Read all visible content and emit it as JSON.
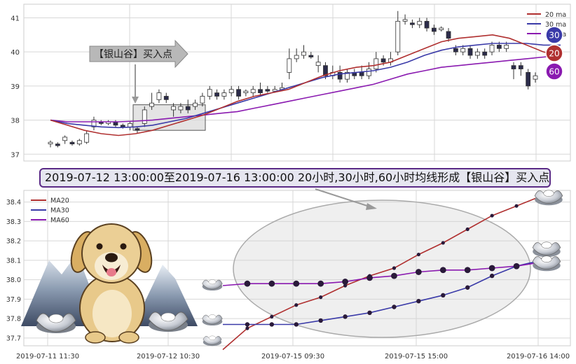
{
  "pattern_label": "【银山谷】买入点",
  "banner": "2019-07-12 13:00:00至2019-07-16 13:00:00 20小时,30小时,60小时均线形成【银山谷】买入点",
  "badges": [
    "30",
    "20",
    "60"
  ],
  "colors": {
    "ma20": "#b03030",
    "ma30": "#3a3aa8",
    "ma60": "#8a1ab0",
    "bull": "#ffffff",
    "bear": "#2b2b4a",
    "grid": "#d7d7d7"
  },
  "chart_data": [
    {
      "type": "candlestick",
      "legend": [
        "20 ma",
        "30 ma",
        "60 ma"
      ],
      "legend_position": "top-right",
      "grid": true,
      "y_ticks": [
        37,
        38,
        39,
        40,
        41
      ],
      "ylim": [
        36.8,
        41.4
      ],
      "candles": [
        [
          37.3,
          37.35,
          37.2,
          37.4
        ],
        [
          37.3,
          37.25,
          37.2,
          37.35
        ],
        [
          37.4,
          37.5,
          37.3,
          37.55
        ],
        [
          37.35,
          37.3,
          37.25,
          37.4
        ],
        [
          37.3,
          37.4,
          37.25,
          37.45
        ],
        [
          37.35,
          37.6,
          37.3,
          37.7
        ],
        [
          37.8,
          38.0,
          37.7,
          38.1
        ],
        [
          37.95,
          37.9,
          37.85,
          38.0
        ],
        [
          37.9,
          37.95,
          37.85,
          38.0
        ],
        [
          37.95,
          37.85,
          37.8,
          38.0
        ],
        [
          37.85,
          37.8,
          37.75,
          37.9
        ],
        [
          37.8,
          37.9,
          37.7,
          37.95
        ],
        [
          37.75,
          37.7,
          37.6,
          37.8
        ],
        [
          37.9,
          38.3,
          37.8,
          38.4
        ],
        [
          38.4,
          38.5,
          38.3,
          38.8
        ],
        [
          38.6,
          38.8,
          38.5,
          38.9
        ],
        [
          38.7,
          38.6,
          38.5,
          38.8
        ],
        [
          38.3,
          38.4,
          38.1,
          38.5
        ],
        [
          38.3,
          38.4,
          38.2,
          38.5
        ],
        [
          38.4,
          38.3,
          38.2,
          38.6
        ],
        [
          38.4,
          38.5,
          38.3,
          38.6
        ],
        [
          38.5,
          38.7,
          38.4,
          38.8
        ],
        [
          38.7,
          38.9,
          38.6,
          39.0
        ],
        [
          38.8,
          38.7,
          38.6,
          38.9
        ],
        [
          38.7,
          38.8,
          38.6,
          38.9
        ],
        [
          38.8,
          38.9,
          38.7,
          39.0
        ],
        [
          38.9,
          38.7,
          38.6,
          39.0
        ],
        [
          38.8,
          38.85,
          38.7,
          38.9
        ],
        [
          38.8,
          38.9,
          38.7,
          39.0
        ],
        [
          38.9,
          38.8,
          38.7,
          39.1
        ],
        [
          38.9,
          38.85,
          38.8,
          39.0
        ],
        [
          38.85,
          38.9,
          38.8,
          39.0
        ],
        [
          38.9,
          38.95,
          38.85,
          39.1
        ],
        [
          39.4,
          39.8,
          39.2,
          40.1
        ],
        [
          39.8,
          39.9,
          39.7,
          40.1
        ],
        [
          39.9,
          40.0,
          39.8,
          40.2
        ],
        [
          39.9,
          39.85,
          39.8,
          40.0
        ],
        [
          39.6,
          39.7,
          39.4,
          39.9
        ],
        [
          39.6,
          39.3,
          39.2,
          39.7
        ],
        [
          39.3,
          39.4,
          39.2,
          39.6
        ],
        [
          39.4,
          39.2,
          39.1,
          39.6
        ],
        [
          39.2,
          39.4,
          39.1,
          39.5
        ],
        [
          39.4,
          39.3,
          39.2,
          39.5
        ],
        [
          39.4,
          39.3,
          39.2,
          39.6
        ],
        [
          39.3,
          39.5,
          39.2,
          39.7
        ],
        [
          39.5,
          39.8,
          39.4,
          40.0
        ],
        [
          39.8,
          39.7,
          39.6,
          39.9
        ],
        [
          39.7,
          39.8,
          39.6,
          40.0
        ],
        [
          40.0,
          40.9,
          39.9,
          41.2
        ],
        [
          40.9,
          40.95,
          40.8,
          41.1
        ],
        [
          40.85,
          40.8,
          40.7,
          40.95
        ],
        [
          40.8,
          40.9,
          40.7,
          41.0
        ],
        [
          40.9,
          40.7,
          40.6,
          41.0
        ],
        [
          40.7,
          40.6,
          40.5,
          40.8
        ],
        [
          40.65,
          40.7,
          40.6,
          40.75
        ],
        [
          40.6,
          40.4,
          40.3,
          40.7
        ],
        [
          40.1,
          40.0,
          39.9,
          40.2
        ],
        [
          40.0,
          40.1,
          39.9,
          40.2
        ],
        [
          40.1,
          39.9,
          39.8,
          40.2
        ],
        [
          39.9,
          40.0,
          39.8,
          40.1
        ],
        [
          40.0,
          39.9,
          39.8,
          40.1
        ],
        [
          40.0,
          40.2,
          39.9,
          40.3
        ],
        [
          40.2,
          40.1,
          40.0,
          40.3
        ],
        [
          40.1,
          40.2,
          40.0,
          40.3
        ],
        [
          39.6,
          39.5,
          39.2,
          39.7
        ],
        [
          39.6,
          39.5,
          39.3,
          39.7
        ],
        [
          39.4,
          39.0,
          38.9,
          39.5
        ],
        [
          39.2,
          39.3,
          39.1,
          39.4
        ]
      ],
      "ma20": [
        38.0,
        37.85,
        37.7,
        37.6,
        37.55,
        37.6,
        37.7,
        37.85,
        38.0,
        38.15,
        38.35,
        38.55,
        38.7,
        38.8,
        38.9,
        39.1,
        39.3,
        39.45,
        39.55,
        39.6,
        39.7,
        39.9,
        40.1,
        40.3,
        40.4,
        40.45,
        40.5,
        40.4,
        40.2,
        40.0,
        39.9
      ],
      "ma30": [
        38.0,
        37.9,
        37.85,
        37.8,
        37.78,
        37.8,
        37.85,
        37.95,
        38.05,
        38.2,
        38.35,
        38.5,
        38.65,
        38.8,
        38.95,
        39.1,
        39.25,
        39.35,
        39.4,
        39.45,
        39.55,
        39.7,
        39.9,
        40.05,
        40.15,
        40.2,
        40.25,
        40.25,
        40.25,
        40.2,
        40.2
      ],
      "ma60": [
        38.0,
        37.95,
        37.95,
        37.95,
        37.95,
        37.97,
        38.0,
        38.05,
        38.1,
        38.15,
        38.2,
        38.25,
        38.35,
        38.45,
        38.55,
        38.65,
        38.75,
        38.85,
        38.95,
        39.05,
        39.2,
        39.35,
        39.45,
        39.55,
        39.6,
        39.65,
        39.7,
        39.75,
        39.8,
        39.85,
        39.9
      ]
    },
    {
      "type": "line",
      "legend": [
        "MA20",
        "MA30",
        "MA60"
      ],
      "legend_position": "top-left",
      "grid": true,
      "x_ticks": [
        "2019-07-11 11:30",
        "2019-07-12 10:30",
        "2019-07-15 09:30",
        "2019-07-15 15:00",
        "2019-07-16 14:00"
      ],
      "y_ticks": [
        37.7,
        37.8,
        37.9,
        38.0,
        38.1,
        38.2,
        38.3,
        38.4
      ],
      "ylim": [
        37.66,
        38.46
      ],
      "series": [
        {
          "name": "MA20",
          "values": [
            37.64,
            37.75,
            37.81,
            37.87,
            37.91,
            37.97,
            38.02,
            38.06,
            38.13,
            38.19,
            38.26,
            38.33,
            38.38,
            38.43
          ]
        },
        {
          "name": "MA30",
          "values": [
            37.77,
            37.77,
            37.77,
            37.77,
            37.79,
            37.81,
            37.83,
            37.86,
            37.89,
            37.92,
            37.96,
            38.02,
            38.07,
            38.1
          ]
        },
        {
          "name": "MA60",
          "values": [
            37.97,
            37.98,
            37.98,
            37.98,
            37.98,
            37.99,
            38.01,
            38.02,
            38.04,
            38.05,
            38.05,
            38.06,
            38.07,
            38.09
          ]
        }
      ]
    }
  ]
}
